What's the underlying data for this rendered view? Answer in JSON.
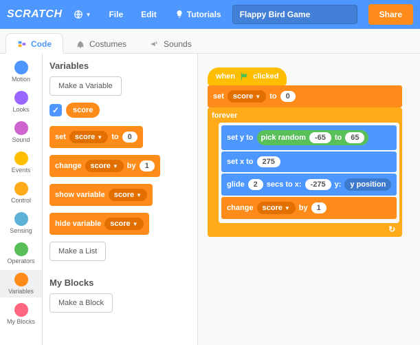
{
  "header": {
    "logo": "SCRATCH",
    "menu_file": "File",
    "menu_edit": "Edit",
    "menu_tutorials": "Tutorials",
    "project_title": "Flappy Bird Game",
    "share": "Share"
  },
  "tabs": {
    "code": "Code",
    "costumes": "Costumes",
    "sounds": "Sounds"
  },
  "categories": [
    {
      "label": "Motion",
      "color": "#4d97ff"
    },
    {
      "label": "Looks",
      "color": "#9966ff"
    },
    {
      "label": "Sound",
      "color": "#cf63cf"
    },
    {
      "label": "Events",
      "color": "#ffbf00"
    },
    {
      "label": "Control",
      "color": "#ffab19"
    },
    {
      "label": "Sensing",
      "color": "#5cb1d6"
    },
    {
      "label": "Operators",
      "color": "#59c059"
    },
    {
      "label": "Variables",
      "color": "#ff8c1a"
    },
    {
      "label": "My Blocks",
      "color": "#ff6680"
    }
  ],
  "palette": {
    "variables_heading": "Variables",
    "make_variable": "Make a Variable",
    "var_name": "score",
    "set_label": "set",
    "to_label": "to",
    "set_value": "0",
    "change_label": "change",
    "by_label": "by",
    "change_value": "1",
    "show_label": "show variable",
    "hide_label": "hide variable",
    "make_list": "Make a List",
    "myblocks_heading": "My Blocks",
    "make_block": "Make a Block"
  },
  "script": {
    "hat_when": "when",
    "hat_clicked": "clicked",
    "set_label": "set",
    "var_name": "score",
    "to_label": "to",
    "set_value": "0",
    "forever": "forever",
    "set_y_to": "set y to",
    "pick_random": "pick random",
    "rand_min": "-65",
    "rand_to": "to",
    "rand_max": "65",
    "set_x_to": "set x to",
    "set_x_val": "275",
    "glide": "glide",
    "glide_secs": "2",
    "secs_to_x": "secs to x:",
    "glide_x": "-275",
    "y_label": "y:",
    "y_position": "y position",
    "change_label": "change",
    "by_label": "by",
    "change_value": "1"
  },
  "colors": {
    "motion": "#4d97ff",
    "data": "#ff8c1a",
    "control": "#ffab19",
    "events": "#ffbf00",
    "operators": "#59c059"
  }
}
